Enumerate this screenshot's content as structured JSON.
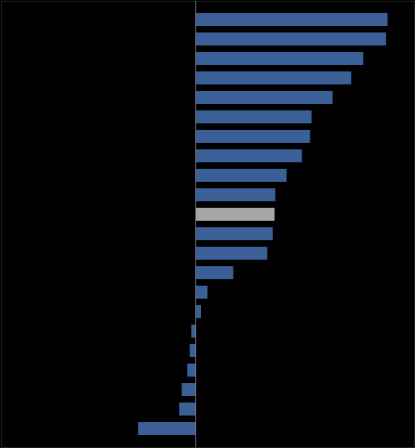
{
  "chart_data": {
    "type": "bar",
    "orientation": "horizontal",
    "categories": [
      null,
      null,
      null,
      null,
      null,
      null,
      null,
      null,
      null,
      null,
      null,
      null,
      null,
      null,
      null,
      null,
      null,
      null,
      null,
      null,
      null,
      null
    ],
    "values": [
      23.8,
      23.6,
      20.8,
      19.3,
      17.0,
      14.4,
      14.2,
      13.2,
      11.3,
      9.9,
      9.8,
      9.6,
      8.9,
      4.7,
      1.5,
      0.7,
      -0.5,
      -0.7,
      -1.0,
      -1.7,
      -2.0,
      -7.1
    ],
    "colors": [
      "#3a6097",
      "#3a6097",
      "#3a6097",
      "#3a6097",
      "#3a6097",
      "#3a6097",
      "#3a6097",
      "#3a6097",
      "#3a6097",
      "#3a6097",
      "#a6a6a6",
      "#3a6097",
      "#3a6097",
      "#3a6097",
      "#3a6097",
      "#3a6097",
      "#3a6097",
      "#3a6097",
      "#3a6097",
      "#3a6097",
      "#3a6097",
      "#3a6097"
    ],
    "xlim": [
      -24.1,
      27.1
    ],
    "tick_labels": false
  }
}
